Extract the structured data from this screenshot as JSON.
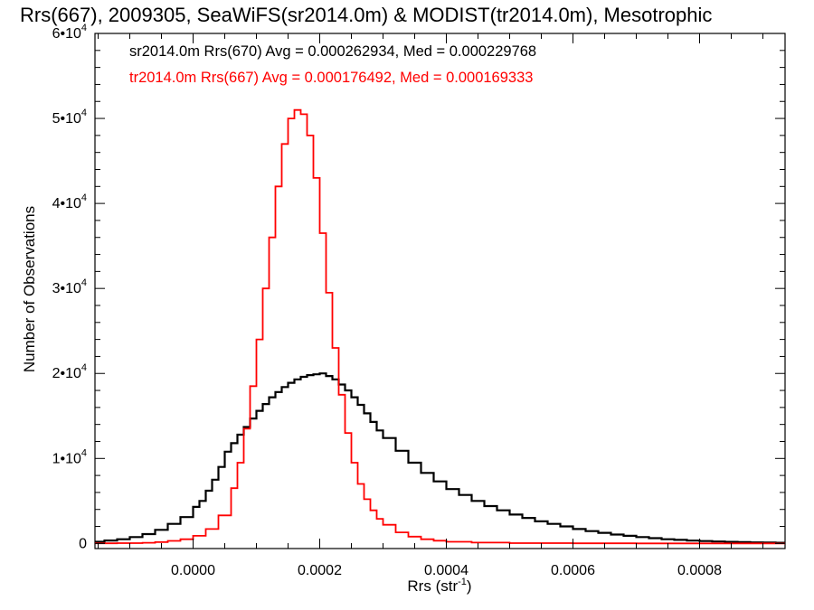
{
  "chart_data": {
    "type": "histogram",
    "title": "Rrs(667), 2009305, SeaWiFS(sr2014.0m) & MODIST(tr2014.0m), Mesotrophic",
    "xlabel": "Rrs (str",
    "xlabel_sup": "-1",
    "xlabel_close": ")",
    "ylabel": "Number of Observations",
    "xlim": [
      -0.000155,
      0.000935
    ],
    "ylim": [
      -600,
      60000
    ],
    "grid": false,
    "x_ticks": [
      {
        "value": 0.0,
        "label": "0.0000"
      },
      {
        "value": 0.0002,
        "label": "0.0002"
      },
      {
        "value": 0.0004,
        "label": "0.0004"
      },
      {
        "value": 0.0006,
        "label": "0.0006"
      },
      {
        "value": 0.0008,
        "label": "0.0008"
      }
    ],
    "y_ticks": [
      {
        "value": 0,
        "mant": "0",
        "exp": ""
      },
      {
        "value": 10000,
        "mant": "1•10",
        "exp": "4"
      },
      {
        "value": 20000,
        "mant": "2•10",
        "exp": "4"
      },
      {
        "value": 30000,
        "mant": "3•10",
        "exp": "4"
      },
      {
        "value": 40000,
        "mant": "4•10",
        "exp": "4"
      },
      {
        "value": 50000,
        "mant": "5•10",
        "exp": "4"
      },
      {
        "value": 60000,
        "mant": "6•10",
        "exp": "4"
      }
    ],
    "series": [
      {
        "name": "sr2014.0m Rrs(670) Avg = 0.000262934, Med = 0.000229768",
        "color": "#000000",
        "bins": [
          [
            -0.00016,
            200
          ],
          [
            -0.00014,
            350
          ],
          [
            -0.00012,
            500
          ],
          [
            -0.0001,
            750
          ],
          [
            -8e-05,
            1100
          ],
          [
            -6e-05,
            1600
          ],
          [
            -4e-05,
            2300
          ],
          [
            -2e-05,
            3100
          ],
          [
            0.0,
            4300
          ],
          [
            1e-05,
            5000
          ],
          [
            2e-05,
            6200
          ],
          [
            3e-05,
            7500
          ],
          [
            4e-05,
            9000
          ],
          [
            5e-05,
            10800
          ],
          [
            6e-05,
            11800
          ],
          [
            7e-05,
            12800
          ],
          [
            8e-05,
            13700
          ],
          [
            9e-05,
            14700
          ],
          [
            0.0001,
            15600
          ],
          [
            0.00011,
            16400
          ],
          [
            0.00012,
            17200
          ],
          [
            0.00013,
            17800
          ],
          [
            0.00014,
            18400
          ],
          [
            0.00015,
            18900
          ],
          [
            0.00016,
            19300
          ],
          [
            0.00017,
            19600
          ],
          [
            0.00018,
            19800
          ],
          [
            0.00019,
            19900
          ],
          [
            0.0002,
            20000
          ],
          [
            0.00021,
            19700
          ],
          [
            0.00022,
            19300
          ],
          [
            0.00023,
            18700
          ],
          [
            0.00024,
            18000
          ],
          [
            0.00025,
            17200
          ],
          [
            0.00026,
            16300
          ],
          [
            0.00027,
            15300
          ],
          [
            0.00028,
            14300
          ],
          [
            0.00029,
            13300
          ],
          [
            0.0003,
            12400
          ],
          [
            0.00032,
            10900
          ],
          [
            0.00034,
            9500
          ],
          [
            0.00036,
            8300
          ],
          [
            0.00038,
            7300
          ],
          [
            0.0004,
            6400
          ],
          [
            0.00042,
            5700
          ],
          [
            0.00044,
            5000
          ],
          [
            0.00046,
            4400
          ],
          [
            0.00048,
            3900
          ],
          [
            0.0005,
            3400
          ],
          [
            0.00052,
            3000
          ],
          [
            0.00054,
            2600
          ],
          [
            0.00056,
            2300
          ],
          [
            0.00058,
            2000
          ],
          [
            0.0006,
            1700
          ],
          [
            0.00062,
            1450
          ],
          [
            0.00064,
            1250
          ],
          [
            0.00066,
            1050
          ],
          [
            0.00068,
            900
          ],
          [
            0.0007,
            750
          ],
          [
            0.00072,
            620
          ],
          [
            0.00074,
            500
          ],
          [
            0.00076,
            420
          ],
          [
            0.00078,
            340
          ],
          [
            0.0008,
            280
          ],
          [
            0.00082,
            230
          ],
          [
            0.00084,
            190
          ],
          [
            0.00086,
            150
          ],
          [
            0.00088,
            120
          ],
          [
            0.0009,
            100
          ],
          [
            0.00092,
            80
          ]
        ]
      },
      {
        "name": "tr2014.0m Rrs(667) Avg = 0.000176492, Med = 0.000169333",
        "color": "#ff0000",
        "bins": [
          [
            -0.00016,
            20
          ],
          [
            -0.00012,
            40
          ],
          [
            -8e-05,
            80
          ],
          [
            -6e-05,
            150
          ],
          [
            -4e-05,
            300
          ],
          [
            -2e-05,
            500
          ],
          [
            0.0,
            900
          ],
          [
            2e-05,
            1700
          ],
          [
            4e-05,
            3300
          ],
          [
            6e-05,
            6500
          ],
          [
            7e-05,
            9500
          ],
          [
            8e-05,
            13500
          ],
          [
            9e-05,
            18500
          ],
          [
            0.0001,
            24000
          ],
          [
            0.00011,
            30000
          ],
          [
            0.00012,
            36000
          ],
          [
            0.00013,
            42000
          ],
          [
            0.00014,
            47000
          ],
          [
            0.00015,
            50000
          ],
          [
            0.00016,
            51000
          ],
          [
            0.00017,
            50500
          ],
          [
            0.00018,
            48000
          ],
          [
            0.00019,
            43000
          ],
          [
            0.0002,
            36500
          ],
          [
            0.00021,
            29500
          ],
          [
            0.00022,
            23000
          ],
          [
            0.00023,
            17500
          ],
          [
            0.00024,
            13000
          ],
          [
            0.00025,
            9500
          ],
          [
            0.00026,
            7000
          ],
          [
            0.00027,
            5200
          ],
          [
            0.00028,
            3900
          ],
          [
            0.00029,
            2900
          ],
          [
            0.0003,
            2200
          ],
          [
            0.00032,
            1300
          ],
          [
            0.00034,
            800
          ],
          [
            0.00036,
            500
          ],
          [
            0.00038,
            320
          ],
          [
            0.0004,
            200
          ],
          [
            0.00044,
            100
          ],
          [
            0.0005,
            40
          ],
          [
            0.0006,
            15
          ],
          [
            0.0007,
            5
          ],
          [
            0.00092,
            0
          ]
        ]
      }
    ]
  }
}
